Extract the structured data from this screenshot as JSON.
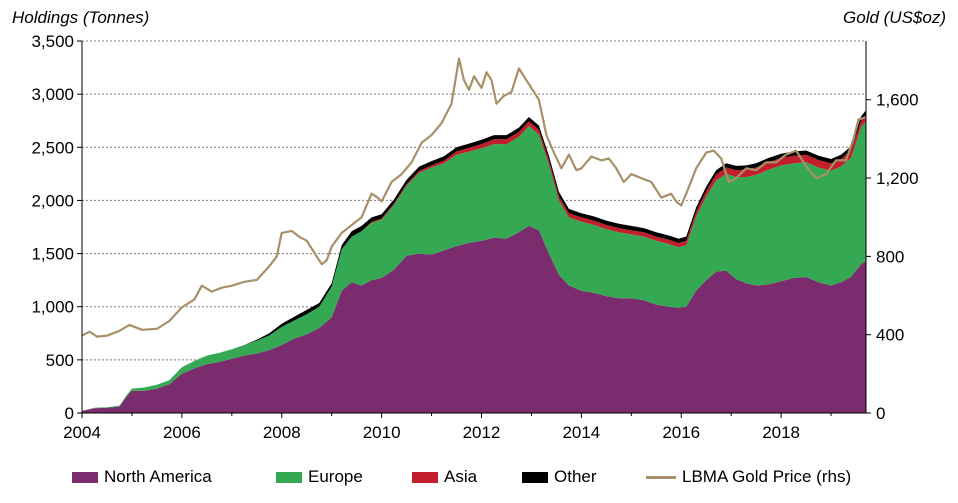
{
  "chart_data": {
    "type": "area",
    "title": "",
    "ylabel_left": "Holdings (Tonnes)",
    "ylabel_right": "Gold (US$oz)",
    "xlim": [
      2004,
      2019.7
    ],
    "ylim_left": [
      0,
      3500
    ],
    "ylim_right": [
      0,
      1900
    ],
    "yticks_left": [
      "0",
      "500",
      "1,000",
      "1,500",
      "2,000",
      "2,500",
      "3,000",
      "3,500"
    ],
    "yticks_right": [
      "0",
      "400",
      "800",
      "1,200",
      "1,600"
    ],
    "xticks": [
      "2004",
      "2006",
      "2008",
      "2010",
      "2012",
      "2014",
      "2016",
      "2018"
    ],
    "x": [
      2004.0,
      2004.25,
      2004.5,
      2004.75,
      2004.9,
      2005.0,
      2005.25,
      2005.5,
      2005.75,
      2006.0,
      2006.25,
      2006.5,
      2006.75,
      2007.0,
      2007.25,
      2007.5,
      2007.75,
      2008.0,
      2008.25,
      2008.5,
      2008.75,
      2009.0,
      2009.2,
      2009.4,
      2009.6,
      2009.8,
      2010.0,
      2010.25,
      2010.5,
      2010.75,
      2011.0,
      2011.25,
      2011.5,
      2011.75,
      2012.0,
      2012.25,
      2012.5,
      2012.75,
      2012.95,
      2013.15,
      2013.35,
      2013.55,
      2013.75,
      2014.0,
      2014.25,
      2014.5,
      2014.75,
      2015.0,
      2015.25,
      2015.5,
      2015.75,
      2015.95,
      2016.1,
      2016.3,
      2016.5,
      2016.7,
      2016.9,
      2017.1,
      2017.3,
      2017.5,
      2017.75,
      2018.0,
      2018.25,
      2018.5,
      2018.75,
      2019.0,
      2019.2,
      2019.4,
      2019.6,
      2019.7
    ],
    "series": [
      {
        "name": "North America",
        "color": "#7b2c6e",
        "values": [
          20,
          45,
          50,
          60,
          160,
          210,
          210,
          230,
          270,
          370,
          420,
          460,
          480,
          510,
          540,
          560,
          590,
          640,
          700,
          740,
          800,
          900,
          1150,
          1230,
          1200,
          1250,
          1270,
          1350,
          1480,
          1500,
          1490,
          1530,
          1570,
          1600,
          1620,
          1650,
          1640,
          1700,
          1760,
          1720,
          1500,
          1300,
          1200,
          1150,
          1130,
          1100,
          1080,
          1080,
          1060,
          1020,
          1000,
          990,
          1000,
          1150,
          1250,
          1330,
          1340,
          1260,
          1220,
          1200,
          1210,
          1240,
          1270,
          1280,
          1230,
          1200,
          1230,
          1280,
          1400,
          1430
        ]
      },
      {
        "name": "Europe",
        "color": "#34a853",
        "values": [
          0,
          5,
          5,
          10,
          10,
          20,
          30,
          35,
          40,
          60,
          70,
          80,
          85,
          90,
          100,
          120,
          140,
          170,
          170,
          190,
          200,
          290,
          390,
          430,
          510,
          540,
          550,
          610,
          660,
          760,
          820,
          820,
          860,
          860,
          870,
          880,
          890,
          900,
          940,
          900,
          840,
          700,
          640,
          650,
          640,
          630,
          620,
          600,
          600,
          600,
          590,
          570,
          580,
          700,
          790,
          860,
          910,
          960,
          1000,
          1040,
          1080,
          1090,
          1080,
          1080,
          1080,
          1080,
          1090,
          1120,
          1290,
          1320
        ]
      },
      {
        "name": "Asia",
        "color": "#c21e2b",
        "values": [
          0,
          0,
          0,
          0,
          0,
          0,
          0,
          0,
          0,
          0,
          0,
          0,
          0,
          0,
          0,
          0,
          0,
          0,
          0,
          0,
          0,
          0,
          0,
          0,
          0,
          10,
          10,
          12,
          15,
          18,
          20,
          25,
          30,
          35,
          40,
          45,
          45,
          45,
          45,
          45,
          40,
          40,
          40,
          40,
          40,
          40,
          40,
          40,
          40,
          40,
          40,
          40,
          40,
          45,
          50,
          55,
          60,
          65,
          70,
          70,
          70,
          70,
          70,
          70,
          70,
          70,
          70,
          70,
          60,
          60
        ]
      },
      {
        "name": "Other",
        "color": "#000000",
        "values": [
          0,
          0,
          0,
          0,
          0,
          0,
          0,
          0,
          0,
          0,
          0,
          0,
          0,
          0,
          0,
          10,
          20,
          30,
          35,
          40,
          35,
          30,
          40,
          50,
          50,
          40,
          40,
          40,
          40,
          40,
          40,
          40,
          40,
          40,
          40,
          40,
          40,
          40,
          40,
          40,
          40,
          40,
          40,
          40,
          40,
          40,
          40,
          40,
          40,
          40,
          40,
          40,
          40,
          40,
          40,
          40,
          40,
          40,
          40,
          40,
          40,
          40,
          40,
          40,
          40,
          40,
          40,
          40,
          40,
          40
        ]
      }
    ],
    "line": {
      "name": "LBMA Gold Price (rhs)",
      "color": "#a89068",
      "axis": "right",
      "x": [
        2004.0,
        2004.15,
        2004.3,
        2004.5,
        2004.75,
        2004.95,
        2005.2,
        2005.5,
        2005.75,
        2006.0,
        2006.25,
        2006.4,
        2006.6,
        2006.8,
        2007.0,
        2007.25,
        2007.5,
        2007.75,
        2007.9,
        2008.0,
        2008.2,
        2008.35,
        2008.5,
        2008.65,
        2008.8,
        2008.9,
        2009.0,
        2009.2,
        2009.4,
        2009.6,
        2009.8,
        2009.92,
        2010.0,
        2010.2,
        2010.4,
        2010.6,
        2010.8,
        2011.0,
        2011.2,
        2011.4,
        2011.55,
        2011.65,
        2011.75,
        2011.85,
        2012.0,
        2012.1,
        2012.2,
        2012.3,
        2012.45,
        2012.6,
        2012.75,
        2012.9,
        2013.0,
        2013.15,
        2013.3,
        2013.45,
        2013.6,
        2013.75,
        2013.9,
        2014.0,
        2014.2,
        2014.4,
        2014.55,
        2014.7,
        2014.85,
        2015.0,
        2015.2,
        2015.4,
        2015.6,
        2015.8,
        2015.9,
        2016.0,
        2016.1,
        2016.3,
        2016.5,
        2016.65,
        2016.8,
        2016.95,
        2017.1,
        2017.3,
        2017.5,
        2017.7,
        2017.9,
        2018.1,
        2018.3,
        2018.5,
        2018.7,
        2018.9,
        2019.1,
        2019.3,
        2019.45,
        2019.55,
        2019.7
      ],
      "values": [
        395,
        415,
        390,
        395,
        420,
        450,
        425,
        430,
        470,
        540,
        580,
        650,
        620,
        640,
        650,
        670,
        680,
        750,
        800,
        920,
        930,
        900,
        880,
        820,
        760,
        780,
        850,
        920,
        960,
        1000,
        1120,
        1100,
        1080,
        1180,
        1220,
        1280,
        1380,
        1420,
        1480,
        1580,
        1810,
        1700,
        1650,
        1720,
        1660,
        1740,
        1700,
        1580,
        1620,
        1640,
        1760,
        1700,
        1660,
        1600,
        1420,
        1330,
        1250,
        1320,
        1240,
        1250,
        1310,
        1290,
        1300,
        1250,
        1180,
        1220,
        1200,
        1180,
        1100,
        1120,
        1080,
        1060,
        1120,
        1250,
        1330,
        1340,
        1300,
        1180,
        1200,
        1250,
        1240,
        1280,
        1280,
        1320,
        1340,
        1260,
        1200,
        1220,
        1290,
        1290,
        1400,
        1500,
        1510
      ]
    }
  }
}
